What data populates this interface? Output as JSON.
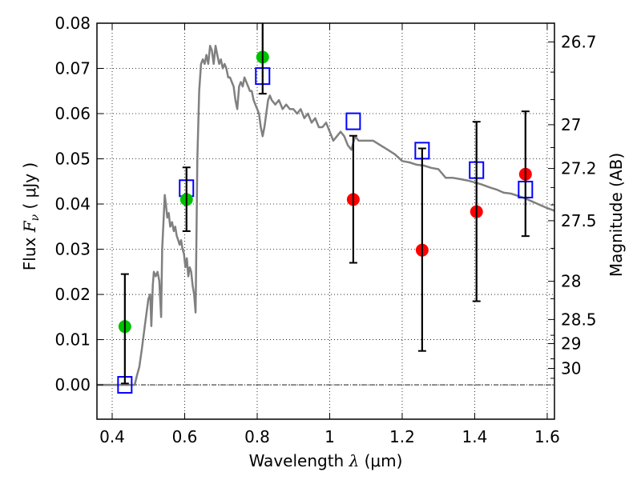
{
  "chart_data": {
    "type": "scatter",
    "title": "",
    "xlabel": "Wavelength  λ (μm)",
    "ylabel": "Flux  F_ν  ( μJy )",
    "ylabel_parts": {
      "prefix": "Flux  ",
      "symbol": "F",
      "subscript": "ν",
      "unit": "  ( μJy )"
    },
    "xlabel_parts": {
      "prefix": "Wavelength  ",
      "symbol": "λ",
      "unit": " (μm)"
    },
    "y2label": "Magnitude (AB)",
    "xlim": [
      0.358,
      1.62
    ],
    "ylim": [
      -0.0076,
      0.08
    ],
    "grid": true,
    "x_ticks": [
      {
        "value": 0.4,
        "label": "0.4"
      },
      {
        "value": 0.6,
        "label": "0.6"
      },
      {
        "value": 0.8,
        "label": "0.8"
      },
      {
        "value": 1.0,
        "label": "1"
      },
      {
        "value": 1.2,
        "label": "1.2"
      },
      {
        "value": 1.4,
        "label": "1.4"
      },
      {
        "value": 1.6,
        "label": "1.6"
      }
    ],
    "y_ticks": [
      {
        "value": 0.0,
        "label": "0.00"
      },
      {
        "value": 0.01,
        "label": "0.01"
      },
      {
        "value": 0.02,
        "label": "0.02"
      },
      {
        "value": 0.03,
        "label": "0.03"
      },
      {
        "value": 0.04,
        "label": "0.04"
      },
      {
        "value": 0.05,
        "label": "0.05"
      },
      {
        "value": 0.06,
        "label": "0.06"
      },
      {
        "value": 0.07,
        "label": "0.07"
      },
      {
        "value": 0.08,
        "label": "0.08"
      }
    ],
    "y2_ticks": [
      {
        "mag": 26.7,
        "label": "26.7"
      },
      {
        "mag": 27.0,
        "label": "27"
      },
      {
        "mag": 27.2,
        "label": "27.2"
      },
      {
        "mag": 27.5,
        "label": "27.5"
      },
      {
        "mag": 28.0,
        "label": "28"
      },
      {
        "mag": 28.5,
        "label": "28.5"
      },
      {
        "mag": 29.0,
        "label": "29"
      },
      {
        "mag": 30.0,
        "label": "30"
      }
    ],
    "y2_minor_ticks_mag": [
      26.8,
      26.9,
      27.1,
      27.3,
      27.4,
      27.7,
      28.2,
      28.8,
      29.5,
      31.0
    ],
    "ab_zeropoint": 23.9,
    "zero_line": {
      "y": 0.0,
      "style": "dash-dot"
    },
    "series": [
      {
        "name": "model-spectrum",
        "kind": "line",
        "color": "#808080",
        "x": [
          0.358,
          0.4,
          0.44,
          0.462,
          0.468,
          0.475,
          0.482,
          0.49,
          0.5,
          0.505,
          0.508,
          0.512,
          0.515,
          0.52,
          0.525,
          0.53,
          0.535,
          0.538,
          0.542,
          0.545,
          0.548,
          0.552,
          0.556,
          0.56,
          0.565,
          0.57,
          0.574,
          0.578,
          0.582,
          0.586,
          0.59,
          0.594,
          0.598,
          0.602,
          0.606,
          0.61,
          0.614,
          0.618,
          0.622,
          0.626,
          0.63,
          0.635,
          0.64,
          0.645,
          0.65,
          0.655,
          0.66,
          0.665,
          0.67,
          0.675,
          0.68,
          0.685,
          0.69,
          0.695,
          0.7,
          0.705,
          0.71,
          0.715,
          0.72,
          0.725,
          0.73,
          0.735,
          0.74,
          0.745,
          0.75,
          0.755,
          0.76,
          0.765,
          0.77,
          0.775,
          0.78,
          0.785,
          0.79,
          0.795,
          0.8,
          0.805,
          0.81,
          0.815,
          0.82,
          0.825,
          0.83,
          0.835,
          0.84,
          0.85,
          0.86,
          0.87,
          0.88,
          0.89,
          0.9,
          0.91,
          0.92,
          0.93,
          0.94,
          0.95,
          0.96,
          0.97,
          0.98,
          0.99,
          1.0,
          1.01,
          1.02,
          1.03,
          1.04,
          1.05,
          1.06,
          1.07,
          1.08,
          1.09,
          1.1,
          1.12,
          1.14,
          1.16,
          1.18,
          1.2,
          1.22,
          1.24,
          1.26,
          1.28,
          1.3,
          1.32,
          1.34,
          1.36,
          1.38,
          1.4,
          1.42,
          1.44,
          1.46,
          1.48,
          1.5,
          1.52,
          1.54,
          1.56,
          1.58,
          1.6,
          1.62
        ],
        "y": [
          0.0,
          0.0,
          0.0,
          0.0,
          0.002,
          0.004,
          0.008,
          0.013,
          0.019,
          0.02,
          0.013,
          0.022,
          0.025,
          0.024,
          0.025,
          0.023,
          0.015,
          0.03,
          0.037,
          0.042,
          0.04,
          0.037,
          0.038,
          0.035,
          0.036,
          0.034,
          0.035,
          0.033,
          0.032,
          0.031,
          0.032,
          0.03,
          0.029,
          0.026,
          0.028,
          0.024,
          0.026,
          0.025,
          0.022,
          0.02,
          0.016,
          0.05,
          0.065,
          0.071,
          0.072,
          0.071,
          0.073,
          0.071,
          0.075,
          0.074,
          0.071,
          0.075,
          0.073,
          0.071,
          0.072,
          0.07,
          0.071,
          0.07,
          0.068,
          0.068,
          0.067,
          0.066,
          0.063,
          0.061,
          0.066,
          0.067,
          0.066,
          0.068,
          0.067,
          0.066,
          0.065,
          0.065,
          0.063,
          0.062,
          0.061,
          0.06,
          0.057,
          0.055,
          0.057,
          0.06,
          0.063,
          0.064,
          0.063,
          0.062,
          0.063,
          0.061,
          0.062,
          0.061,
          0.061,
          0.06,
          0.061,
          0.059,
          0.06,
          0.058,
          0.059,
          0.057,
          0.057,
          0.058,
          0.056,
          0.054,
          0.055,
          0.056,
          0.055,
          0.053,
          0.052,
          0.055,
          0.054,
          0.054,
          0.054,
          0.054,
          0.053,
          0.052,
          0.051,
          0.0495,
          0.0492,
          0.0487,
          0.0485,
          0.048,
          0.0477,
          0.0458,
          0.0458,
          0.0455,
          0.0452,
          0.0448,
          0.0443,
          0.0437,
          0.0432,
          0.0425,
          0.0423,
          0.0418,
          0.0412,
          0.0405,
          0.0398,
          0.0391,
          0.0385
        ]
      },
      {
        "name": "model-photometry",
        "kind": "open-square",
        "color": "#0000ff",
        "x": [
          0.435,
          0.605,
          0.815,
          1.065,
          1.255,
          1.405,
          1.54
        ],
        "y": [
          0.0,
          0.0435,
          0.0683,
          0.0583,
          0.0518,
          0.0475,
          0.0432
        ]
      },
      {
        "name": "detections",
        "kind": "filled-circle-errorbar",
        "color": "#00c000",
        "x": [
          0.435,
          0.605,
          0.815
        ],
        "y": [
          0.0129,
          0.041,
          0.0725
        ],
        "err_low": [
          0.0003,
          0.034,
          0.0644
        ],
        "err_high": [
          0.0245,
          0.0481,
          0.085
        ]
      },
      {
        "name": "upper-limits-or-low-snr",
        "kind": "filled-circle-errorbar",
        "color": "#ff0000",
        "x": [
          1.065,
          1.255,
          1.405,
          1.54
        ],
        "y": [
          0.041,
          0.0298,
          0.0383,
          0.0466
        ],
        "err_low": [
          0.027,
          0.0075,
          0.0185,
          0.0329
        ],
        "err_high": [
          0.0551,
          0.0523,
          0.0582,
          0.0605
        ]
      }
    ]
  }
}
